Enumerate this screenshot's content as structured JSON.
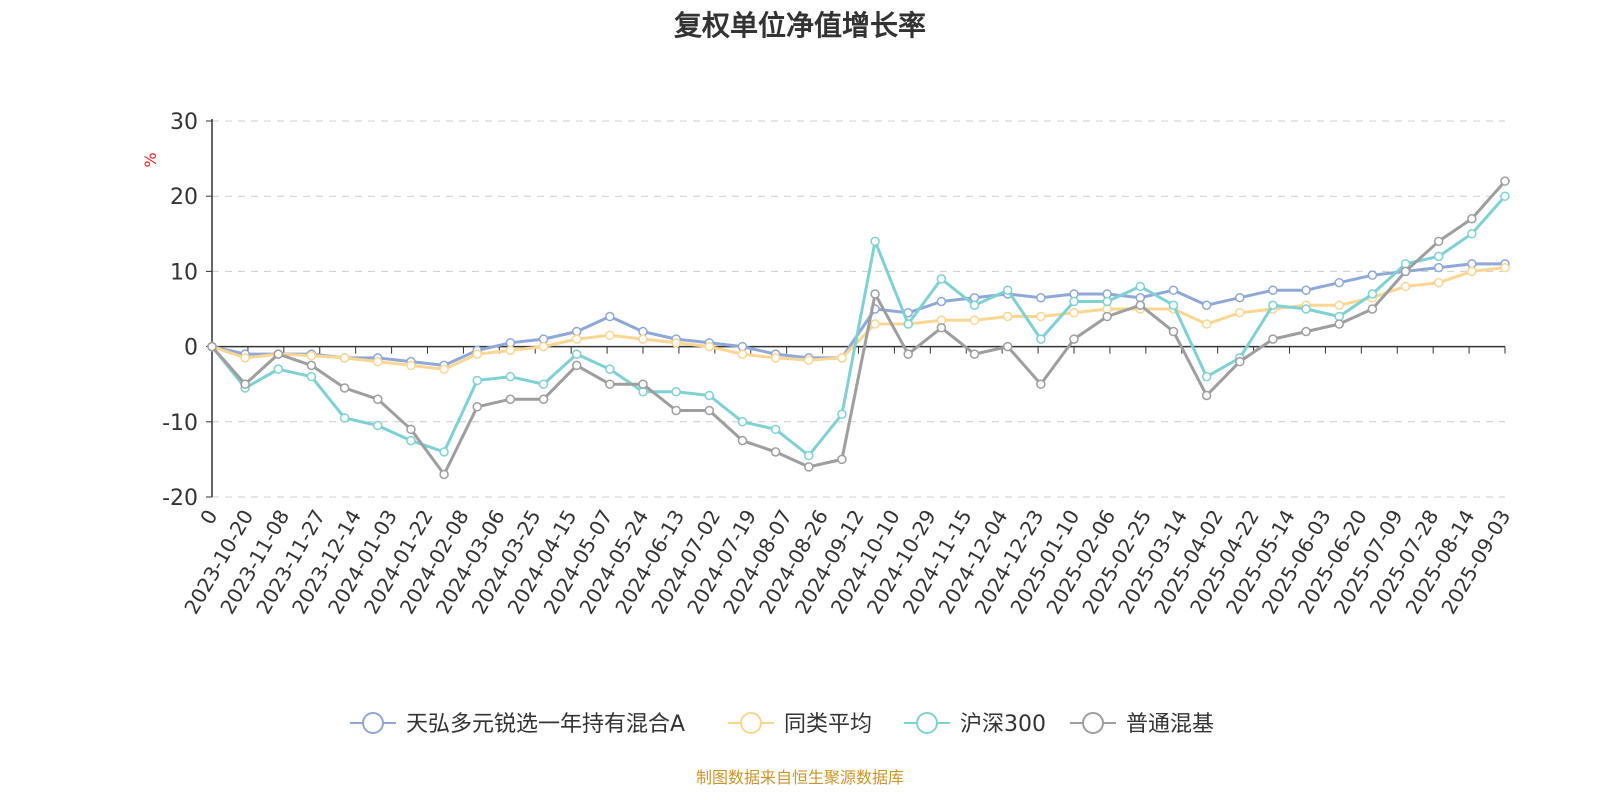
{
  "title": "复权单位净值增长率",
  "source": "制图数据来自恒生聚源数据库",
  "chart_data": {
    "type": "line",
    "ylabel": "%",
    "ylim": [
      -20,
      30
    ],
    "yticks": [
      "-20",
      "-10",
      "0",
      "10",
      "20",
      "30"
    ],
    "grid": "horizontal dashed",
    "legend_position": "bottom-center",
    "x_first_label": "0",
    "x_tick_labels": [
      "2023-10-20",
      "2023-11-08",
      "2023-11-27",
      "2023-12-14",
      "2024-01-03",
      "2024-01-22",
      "2024-02-08",
      "2024-03-06",
      "2024-03-25",
      "2024-04-15",
      "2024-05-07",
      "2024-05-24",
      "2024-06-13",
      "2024-07-02",
      "2024-07-19",
      "2024-08-07",
      "2024-08-26",
      "2024-09-12",
      "2024-10-10",
      "2024-10-29",
      "2024-11-15",
      "2024-12-04",
      "2024-12-23",
      "2025-01-10",
      "2025-02-06",
      "2025-02-25",
      "2025-03-14",
      "2025-04-02",
      "2025-04-22",
      "2025-05-14",
      "2025-06-03",
      "2025-06-20",
      "2025-07-09",
      "2025-07-28",
      "2025-08-14",
      "2025-09-03"
    ],
    "x_points": [
      "0",
      "2023-10-20",
      "2023-11-08",
      "2023-11-27",
      "2023-12-14",
      "2024-01-03",
      "2024-01-22",
      "2024-02-08",
      "2024-03-06",
      "2024-03-25",
      "2024-04-15",
      "2024-05-07",
      "2024-05-24",
      "2024-06-13",
      "2024-07-02",
      "2024-07-19",
      "2024-08-07",
      "2024-08-26",
      "2024-09-12",
      "2024-09-27",
      "2024-10-10",
      "2024-10-29",
      "2024-11-15",
      "2024-12-04",
      "2024-12-23",
      "2025-01-10",
      "2025-02-06",
      "2025-02-25",
      "2025-03-14",
      "2025-04-02",
      "2025-04-08",
      "2025-04-22",
      "2025-05-14",
      "2025-06-03",
      "2025-06-20",
      "2025-07-09",
      "2025-07-28",
      "2025-08-14",
      "2025-08-25",
      "2025-09-03"
    ],
    "series": [
      {
        "name": "天弘多元锐选一年持有混合A",
        "color": "#8fa8d8",
        "values": [
          0,
          -1,
          -1,
          -1,
          -1.5,
          -1.5,
          -2,
          -2.5,
          -0.5,
          0.5,
          1,
          2,
          4,
          2,
          1,
          0.5,
          0,
          -1,
          -1.5,
          -1.5,
          5,
          4.5,
          6,
          6.5,
          7,
          6.5,
          7,
          7,
          6.5,
          7.5,
          5.5,
          6.5,
          7.5,
          7.5,
          8.5,
          9.5,
          10,
          10.5,
          11,
          11
        ]
      },
      {
        "name": "同类平均",
        "color": "#fbd692",
        "values": [
          0,
          -1.5,
          -1,
          -1.2,
          -1.5,
          -2,
          -2.5,
          -3,
          -1,
          -0.5,
          0,
          1,
          1.5,
          1,
          0.5,
          0,
          -1,
          -1.5,
          -1.8,
          -1.5,
          3,
          3,
          3.5,
          3.5,
          4,
          4,
          4.5,
          5,
          5,
          5,
          3,
          4.5,
          5,
          5.5,
          5.5,
          6.5,
          8,
          8.5,
          10,
          10.5
        ]
      },
      {
        "name": "沪深300",
        "color": "#7fd1d4",
        "values": [
          0,
          -5.5,
          -3,
          -4,
          -9.5,
          -10.5,
          -12.5,
          -14,
          -4.5,
          -4,
          -5,
          -1,
          -3,
          -6,
          -6,
          -6.5,
          -10,
          -11,
          -14.5,
          -9,
          14,
          3,
          9,
          5.5,
          7.5,
          1,
          6,
          6,
          8,
          5.5,
          -4,
          -1.5,
          5.5,
          5,
          4,
          7,
          11,
          12,
          15,
          20
        ]
      },
      {
        "name": "普通混基",
        "color": "#9e9e9e",
        "values": [
          0,
          -5,
          -1,
          -2.5,
          -5.5,
          -7,
          -11,
          -17,
          -8,
          -7,
          -7,
          -2.5,
          -5,
          -5,
          -8.5,
          -8.5,
          -12.5,
          -14,
          -16,
          -15,
          7,
          -1,
          2.5,
          -1,
          0,
          -5,
          1,
          4,
          5.5,
          2,
          -6.5,
          -2,
          1,
          2,
          3,
          5,
          10,
          14,
          17,
          22
        ]
      }
    ]
  }
}
